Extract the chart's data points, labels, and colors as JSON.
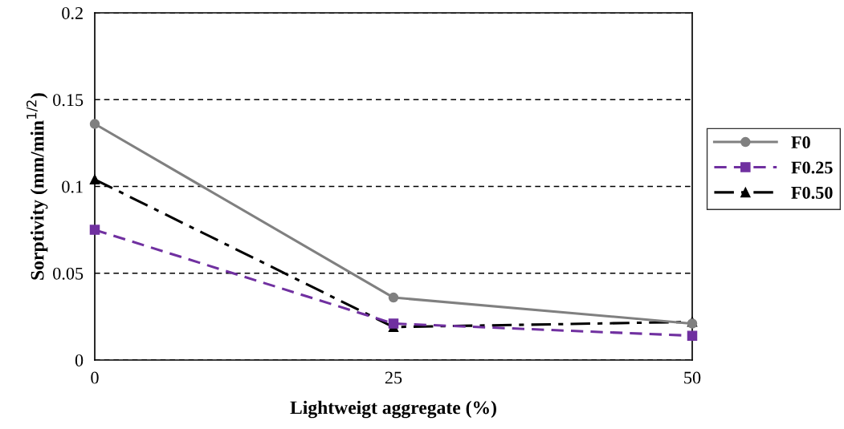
{
  "chart_data": {
    "type": "line",
    "xlabel": "Lightweigt aggregate (%)",
    "ylabel": "Sorptivity (mm/min$^{1/2}$)",
    "x": [
      0,
      25,
      50
    ],
    "xlim": [
      0,
      50
    ],
    "xticks": [
      0,
      25,
      50
    ],
    "ylim": [
      0,
      0.2
    ],
    "yticks": [
      0,
      0.05,
      0.1,
      0.15,
      0.2
    ],
    "grid": "y",
    "legend": "right",
    "series": [
      {
        "name": "F0",
        "color": "#808080",
        "values": [
          0.136,
          0.036,
          0.021
        ],
        "marker": "circle",
        "line_style": "solid"
      },
      {
        "name": "F0.25",
        "color": "#7030a0",
        "values": [
          0.075,
          0.021,
          0.014
        ],
        "marker": "square",
        "line_style": "dashed"
      },
      {
        "name": "F0.50",
        "color": "#000000",
        "values": [
          0.104,
          0.019,
          0.022
        ],
        "marker": "triangle",
        "line_style": "dashdot"
      }
    ]
  }
}
